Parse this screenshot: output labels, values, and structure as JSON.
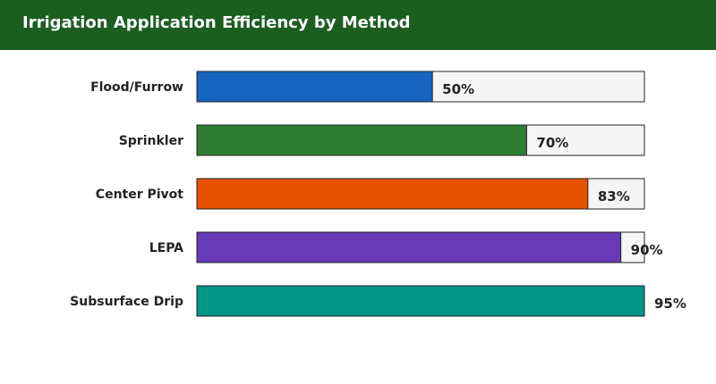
{
  "header": {
    "title": "Irrigation Application Efficiency by Method"
  },
  "chart_data": {
    "type": "bar",
    "orientation": "horizontal",
    "title": "Irrigation Application Efficiency by Method",
    "categories": [
      "Flood/Furrow",
      "Sprinkler",
      "Center Pivot",
      "LEPA",
      "Subsurface Drip"
    ],
    "values": [
      50,
      70,
      83,
      90,
      95
    ],
    "value_labels": [
      "50%",
      "70%",
      "83%",
      "90%",
      "95%"
    ],
    "colors": [
      "#1565c0",
      "#2e7d32",
      "#e65100",
      "#673ab7",
      "#009688"
    ],
    "track_color": "#f5f5f5",
    "xlim": [
      0,
      95
    ],
    "grid": false,
    "legend": "none"
  }
}
